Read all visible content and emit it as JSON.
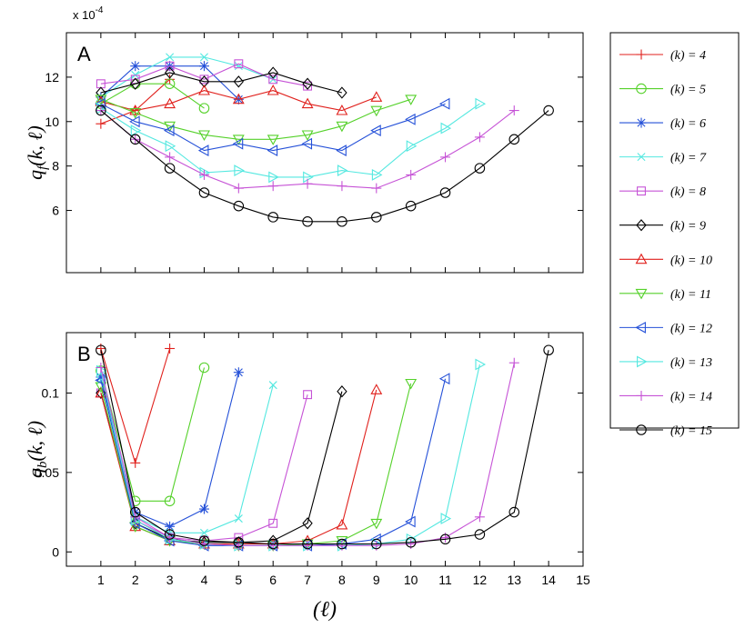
{
  "figure": {
    "x_axis_label": "(ℓ)",
    "legend_label_prefix": "(k) = ",
    "legend_position": "right"
  },
  "series_style": [
    {
      "k": 4,
      "color": "#e0201c",
      "marker": "plus"
    },
    {
      "k": 5,
      "color": "#55d12a",
      "marker": "circle"
    },
    {
      "k": 6,
      "color": "#2450d8",
      "marker": "star"
    },
    {
      "k": 7,
      "color": "#54e8e0",
      "marker": "x"
    },
    {
      "k": 8,
      "color": "#c653d6",
      "marker": "square"
    },
    {
      "k": 9,
      "color": "#000000",
      "marker": "diamond"
    },
    {
      "k": 10,
      "color": "#e0201c",
      "marker": "triangle-up"
    },
    {
      "k": 11,
      "color": "#55d12a",
      "marker": "triangle-down"
    },
    {
      "k": 12,
      "color": "#2450d8",
      "marker": "triangle-left"
    },
    {
      "k": 13,
      "color": "#54e8e0",
      "marker": "triangle-right"
    },
    {
      "k": 14,
      "color": "#c653d6",
      "marker": "plus"
    },
    {
      "k": 15,
      "color": "#000000",
      "marker": "circle"
    }
  ],
  "chart_data": [
    {
      "type": "line",
      "panel": "A",
      "ylabel": "q_f(k, ℓ)",
      "ylabel_main": "q",
      "ylabel_sub": "f",
      "ylabel_args": "(k, ℓ)",
      "exponent_label": "x 10",
      "exponent_power": "-4",
      "xlim": [
        0,
        15
      ],
      "ylim": [
        3.2,
        14
      ],
      "yticks": [
        6,
        8,
        10,
        12
      ],
      "ytick_labels": [
        "6",
        "8",
        "10",
        "12"
      ],
      "series": [
        {
          "name": "(k) = 4",
          "x": [
            1,
            2,
            3
          ],
          "y": [
            9.9,
            10.5,
            11.9
          ]
        },
        {
          "name": "(k) = 5",
          "x": [
            1,
            2,
            3,
            4
          ],
          "y": [
            10.8,
            11.7,
            11.7,
            10.6
          ]
        },
        {
          "name": "(k) = 6",
          "x": [
            1,
            2,
            3,
            4,
            5
          ],
          "y": [
            11.1,
            12.5,
            12.5,
            12.5,
            11.0
          ]
        },
        {
          "name": "(k) = 7",
          "x": [
            1,
            2,
            3,
            4,
            5,
            6
          ],
          "y": [
            11.1,
            12.1,
            12.9,
            12.9,
            12.5,
            11.9
          ]
        },
        {
          "name": "(k) = 8",
          "x": [
            1,
            2,
            3,
            4,
            5,
            6,
            7
          ],
          "y": [
            11.7,
            11.9,
            12.5,
            11.9,
            12.6,
            11.9,
            11.6
          ]
        },
        {
          "name": "(k) = 9",
          "x": [
            1,
            2,
            3,
            4,
            5,
            6,
            7,
            8
          ],
          "y": [
            11.3,
            11.7,
            12.2,
            11.8,
            11.8,
            12.2,
            11.7,
            11.3
          ]
        },
        {
          "name": "(k) = 10",
          "x": [
            1,
            2,
            3,
            4,
            5,
            6,
            7,
            8,
            9
          ],
          "y": [
            10.9,
            10.5,
            10.8,
            11.4,
            11.0,
            11.4,
            10.8,
            10.5,
            11.1
          ]
        },
        {
          "name": "(k) = 11",
          "x": [
            1,
            2,
            3,
            4,
            5,
            6,
            7,
            8,
            9,
            10
          ],
          "y": [
            11.0,
            10.4,
            9.8,
            9.4,
            9.2,
            9.2,
            9.4,
            9.8,
            10.5,
            11.0
          ]
        },
        {
          "name": "(k) = 12",
          "x": [
            1,
            2,
            3,
            4,
            5,
            6,
            7,
            8,
            9,
            10,
            11
          ],
          "y": [
            10.8,
            10.0,
            9.6,
            8.7,
            9.0,
            8.7,
            9.0,
            8.7,
            9.6,
            10.1,
            10.8
          ]
        },
        {
          "name": "(k) = 13",
          "x": [
            1,
            2,
            3,
            4,
            5,
            6,
            7,
            8,
            9,
            10,
            11,
            12
          ],
          "y": [
            10.6,
            9.6,
            8.9,
            7.7,
            7.8,
            7.5,
            7.5,
            7.8,
            7.6,
            8.9,
            9.7,
            10.8
          ]
        },
        {
          "name": "(k) = 14",
          "x": [
            1,
            2,
            3,
            4,
            5,
            6,
            7,
            8,
            9,
            10,
            11,
            12,
            13
          ],
          "y": [
            10.5,
            9.2,
            8.4,
            7.6,
            7.0,
            7.1,
            7.2,
            7.1,
            7.0,
            7.6,
            8.4,
            9.3,
            10.5
          ]
        },
        {
          "name": "(k) = 15",
          "x": [
            1,
            2,
            3,
            4,
            5,
            6,
            7,
            8,
            9,
            10,
            11,
            12,
            13,
            14
          ],
          "y": [
            10.5,
            9.2,
            7.9,
            6.8,
            6.2,
            5.7,
            5.5,
            5.5,
            5.7,
            6.2,
            6.8,
            7.9,
            9.2,
            10.5
          ]
        }
      ]
    },
    {
      "type": "line",
      "panel": "B",
      "ylabel": "q_b(k, ℓ)",
      "ylabel_main": "q",
      "ylabel_sub": "b",
      "ylabel_args": "(k, ℓ)",
      "xlabel": "(ℓ)",
      "xlim": [
        0,
        15
      ],
      "ylim": [
        -0.009,
        0.138
      ],
      "xticks": [
        1,
        2,
        3,
        4,
        5,
        6,
        7,
        8,
        9,
        10,
        11,
        12,
        13,
        14,
        15
      ],
      "xtick_labels": [
        "1",
        "2",
        "3",
        "4",
        "5",
        "6",
        "7",
        "8",
        "9",
        "10",
        "11",
        "12",
        "13",
        "14",
        "15"
      ],
      "yticks": [
        0,
        0.05,
        0.1
      ],
      "ytick_labels": [
        "0",
        "0.05",
        "0.1"
      ],
      "series": [
        {
          "name": "(k) = 4",
          "x": [
            1,
            2,
            3
          ],
          "y": [
            0.128,
            0.056,
            0.128
          ]
        },
        {
          "name": "(k) = 5",
          "x": [
            1,
            2,
            3,
            4
          ],
          "y": [
            0.114,
            0.032,
            0.032,
            0.116
          ]
        },
        {
          "name": "(k) = 6",
          "x": [
            1,
            2,
            3,
            4,
            5
          ],
          "y": [
            0.11,
            0.025,
            0.016,
            0.027,
            0.113
          ]
        },
        {
          "name": "(k) = 7",
          "x": [
            1,
            2,
            3,
            4,
            5,
            6
          ],
          "y": [
            0.108,
            0.022,
            0.012,
            0.012,
            0.021,
            0.105
          ]
        },
        {
          "name": "(k) = 8",
          "x": [
            1,
            2,
            3,
            4,
            5,
            6,
            7
          ],
          "y": [
            0.1,
            0.02,
            0.009,
            0.007,
            0.009,
            0.018,
            0.099
          ]
        },
        {
          "name": "(k) = 9",
          "x": [
            1,
            2,
            3,
            4,
            5,
            6,
            7,
            8
          ],
          "y": [
            0.1,
            0.018,
            0.008,
            0.006,
            0.006,
            0.007,
            0.018,
            0.101
          ]
        },
        {
          "name": "(k) = 10",
          "x": [
            1,
            2,
            3,
            4,
            5,
            6,
            7,
            8,
            9
          ],
          "y": [
            0.1,
            0.016,
            0.007,
            0.005,
            0.005,
            0.005,
            0.007,
            0.017,
            0.102
          ]
        },
        {
          "name": "(k) = 11",
          "x": [
            1,
            2,
            3,
            4,
            5,
            6,
            7,
            8,
            9,
            10
          ],
          "y": [
            0.104,
            0.016,
            0.007,
            0.005,
            0.004,
            0.004,
            0.005,
            0.007,
            0.018,
            0.106
          ]
        },
        {
          "name": "(k) = 12",
          "x": [
            1,
            2,
            3,
            4,
            5,
            6,
            7,
            8,
            9,
            10,
            11
          ],
          "y": [
            0.108,
            0.018,
            0.007,
            0.004,
            0.004,
            0.004,
            0.004,
            0.005,
            0.008,
            0.019,
            0.109
          ]
        },
        {
          "name": "(k) = 13",
          "x": [
            1,
            2,
            3,
            4,
            5,
            6,
            7,
            8,
            9,
            10,
            11,
            12
          ],
          "y": [
            0.114,
            0.02,
            0.008,
            0.005,
            0.004,
            0.004,
            0.004,
            0.004,
            0.005,
            0.008,
            0.021,
            0.118
          ]
        },
        {
          "name": "(k) = 14",
          "x": [
            1,
            2,
            3,
            4,
            5,
            6,
            7,
            8,
            9,
            10,
            11,
            12,
            13
          ],
          "y": [
            0.116,
            0.022,
            0.009,
            0.005,
            0.004,
            0.004,
            0.004,
            0.004,
            0.004,
            0.005,
            0.009,
            0.022,
            0.119
          ]
        },
        {
          "name": "(k) = 15",
          "x": [
            1,
            2,
            3,
            4,
            5,
            6,
            7,
            8,
            9,
            10,
            11,
            12,
            13,
            14
          ],
          "y": [
            0.127,
            0.025,
            0.011,
            0.007,
            0.006,
            0.005,
            0.005,
            0.005,
            0.005,
            0.006,
            0.008,
            0.011,
            0.025,
            0.127
          ]
        }
      ]
    }
  ]
}
